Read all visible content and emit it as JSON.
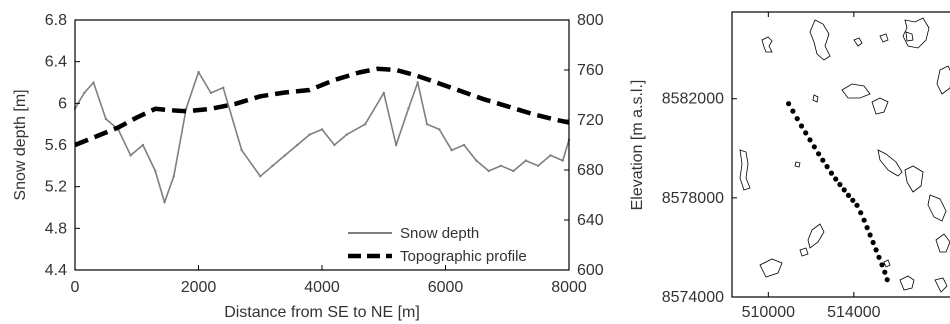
{
  "chart_data": [
    {
      "type": "line",
      "xlabel": "Distance from SE to NE [m]",
      "ylabel": "Snow depth [m]",
      "y2label": "Elevation [m a.s.l.]",
      "xlim": [
        0,
        8000
      ],
      "ylim": [
        4.4,
        6.8
      ],
      "y2lim": [
        600,
        800
      ],
      "x_ticks": [
        "0",
        "2000",
        "4000",
        "6000",
        "8000"
      ],
      "y_ticks": [
        "4.4",
        "4.8",
        "5.2",
        "5.6",
        "6",
        "6.4",
        "6.8"
      ],
      "y2_ticks": [
        "600",
        "640",
        "680",
        "720",
        "760",
        "800"
      ],
      "grid": false,
      "legend_position": "bottom-right",
      "series": [
        {
          "name": "Snow depth",
          "axis": "left",
          "style": "solid",
          "color": "#7f7f7f",
          "x": [
            0,
            150,
            300,
            500,
            700,
            900,
            1100,
            1300,
            1450,
            1600,
            1800,
            2000,
            2200,
            2400,
            2700,
            3000,
            3200,
            3400,
            3600,
            3800,
            4000,
            4200,
            4400,
            4700,
            5000,
            5200,
            5400,
            5550,
            5700,
            5900,
            6100,
            6300,
            6500,
            6700,
            6900,
            7100,
            7300,
            7500,
            7700,
            7900,
            8000
          ],
          "values": [
            5.95,
            6.1,
            6.2,
            5.85,
            5.75,
            5.5,
            5.6,
            5.35,
            5.05,
            5.3,
            5.95,
            6.3,
            6.1,
            6.15,
            5.55,
            5.3,
            5.4,
            5.5,
            5.6,
            5.7,
            5.75,
            5.6,
            5.7,
            5.8,
            6.1,
            5.6,
            5.95,
            6.2,
            5.8,
            5.75,
            5.55,
            5.6,
            5.45,
            5.35,
            5.4,
            5.35,
            5.45,
            5.4,
            5.5,
            5.45,
            5.65
          ]
        },
        {
          "name": "Topographic profile",
          "axis": "right",
          "style": "dashed",
          "color": "#000000",
          "x": [
            0,
            300,
            700,
            1000,
            1300,
            1500,
            1800,
            2200,
            2600,
            3000,
            3400,
            3800,
            4200,
            4600,
            4900,
            5200,
            5500,
            5800,
            6200,
            6600,
            7000,
            7400,
            7800,
            8000
          ],
          "values": [
            700,
            706,
            714,
            722,
            729,
            728,
            727,
            729,
            733,
            739,
            742,
            744,
            752,
            758,
            761,
            760,
            756,
            751,
            744,
            737,
            731,
            725,
            720,
            718
          ]
        }
      ]
    },
    {
      "type": "scatter",
      "x_ticks": [
        "510000",
        "514000"
      ],
      "y_ticks": [
        "8574000",
        "8578000",
        "8582000"
      ],
      "xlim": [
        508300,
        518500
      ],
      "ylim": [
        8574000,
        8585500
      ],
      "grid": false,
      "series": [
        {
          "style": "dots",
          "color": "#000000",
          "x": [
            510950,
            511150,
            511350,
            511550,
            511750,
            511950,
            512150,
            512350,
            512550,
            512750,
            512950,
            513150,
            513350,
            513550,
            513750,
            513950,
            514150,
            514320,
            514480,
            514620,
            514760,
            514900,
            515040,
            515180,
            515320,
            515450,
            515560
          ],
          "values": [
            8581800,
            8581500,
            8581200,
            8580900,
            8580620,
            8580340,
            8580060,
            8579780,
            8579520,
            8579260,
            8579000,
            8578760,
            8578540,
            8578320,
            8578100,
            8577900,
            8577700,
            8577400,
            8577100,
            8576800,
            8576500,
            8576200,
            8575900,
            8575600,
            8575300,
            8575000,
            8574700
          ]
        }
      ]
    }
  ],
  "legend": {
    "snow_depth_label": "Snow depth",
    "topo_label": "Topographic profile"
  }
}
